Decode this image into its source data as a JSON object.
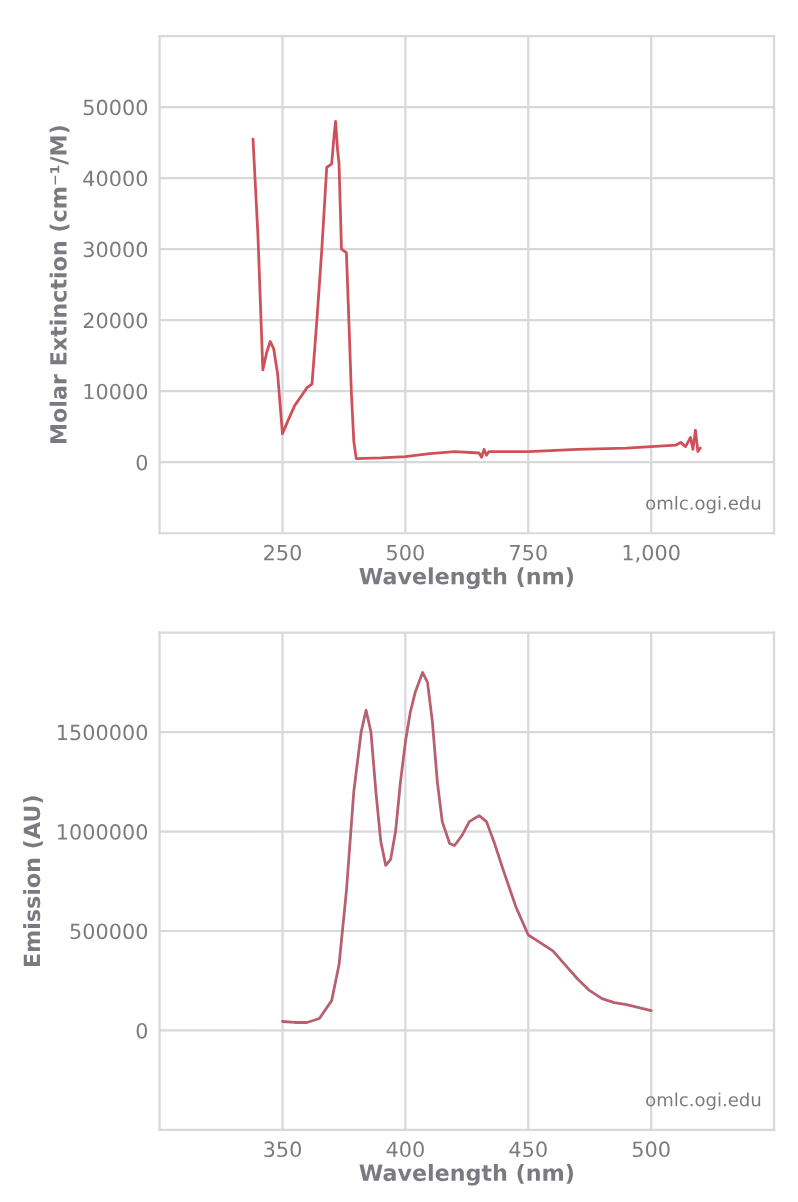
{
  "chart_data": [
    {
      "type": "line",
      "xlabel": "Wavelength (nm)",
      "ylabel": "Molar Extinction (cm⁻¹/M)",
      "annotations": [
        "omlc.ogi.edu"
      ],
      "grid": true,
      "legend": false,
      "xlim": [
        0,
        1250
      ],
      "xticks": [
        250,
        500,
        750,
        {
          "value": 1000,
          "label": "1,000"
        }
      ],
      "ylim": [
        -10000,
        60000
      ],
      "yticks": [
        0,
        10000,
        20000,
        30000,
        40000,
        50000
      ],
      "series": [
        {
          "color": "#d0505a",
          "x": [
            190,
            200,
            210,
            218,
            225,
            232,
            240,
            250,
            262,
            275,
            290,
            300,
            310,
            320,
            330,
            340,
            350,
            355,
            358,
            362,
            365,
            370,
            380,
            385,
            390,
            395,
            400,
            450,
            500,
            550,
            600,
            650,
            655,
            660,
            665,
            670,
            750,
            850,
            950,
            1000,
            1050,
            1060,
            1070,
            1080,
            1085,
            1090,
            1095,
            1100
          ],
          "values": [
            45500,
            32000,
            13000,
            15500,
            17000,
            16000,
            12500,
            4000,
            6000,
            8000,
            9500,
            10500,
            11000,
            20000,
            30000,
            41500,
            42000,
            46000,
            48000,
            44000,
            42000,
            30000,
            29500,
            20000,
            10000,
            3000,
            500,
            600,
            800,
            1200,
            1500,
            1300,
            700,
            1800,
            1000,
            1500,
            1500,
            1800,
            2000,
            2200,
            2400,
            2800,
            2200,
            3500,
            1800,
            4500,
            1500,
            2000
          ]
        }
      ]
    },
    {
      "type": "line",
      "xlabel": "Wavelength (nm)",
      "ylabel": "Emission (AU)",
      "annotations": [
        "omlc.ogi.edu"
      ],
      "grid": true,
      "legend": false,
      "xlim": [
        300,
        550
      ],
      "xticks": [
        350,
        400,
        450,
        500
      ],
      "ylim": [
        -500000,
        2000000
      ],
      "yticks": [
        0,
        500000,
        1000000,
        1500000
      ],
      "series": [
        {
          "color": "#b86070",
          "x": [
            350,
            355,
            360,
            365,
            370,
            373,
            376,
            379,
            382,
            384,
            386,
            388,
            390,
            392,
            394,
            396,
            398,
            400,
            402,
            404,
            407,
            409,
            411,
            413,
            415,
            418,
            420,
            423,
            426,
            430,
            433,
            436,
            440,
            445,
            450,
            455,
            460,
            465,
            470,
            475,
            480,
            485,
            490,
            495,
            500
          ],
          "values": [
            45000,
            40000,
            40000,
            60000,
            150000,
            330000,
            700000,
            1200000,
            1500000,
            1610000,
            1500000,
            1200000,
            950000,
            830000,
            860000,
            1000000,
            1250000,
            1450000,
            1600000,
            1700000,
            1800000,
            1750000,
            1550000,
            1250000,
            1050000,
            940000,
            930000,
            980000,
            1050000,
            1080000,
            1050000,
            950000,
            800000,
            620000,
            480000,
            440000,
            400000,
            330000,
            260000,
            200000,
            160000,
            140000,
            130000,
            115000,
            100000
          ]
        }
      ]
    }
  ]
}
